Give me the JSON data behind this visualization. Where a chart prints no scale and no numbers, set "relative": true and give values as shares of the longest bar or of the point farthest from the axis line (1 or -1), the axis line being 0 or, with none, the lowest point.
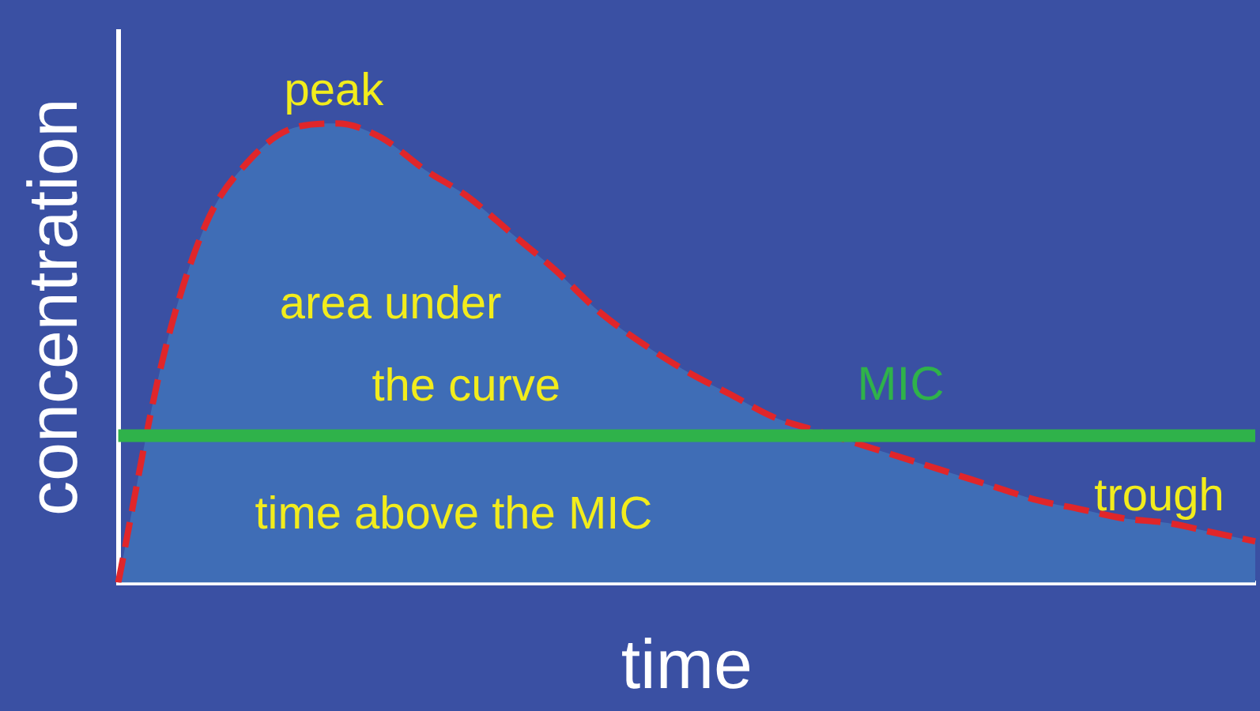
{
  "chart_data": {
    "type": "area",
    "relative": true,
    "xlabel": "time",
    "ylabel": "concentration",
    "grid": false,
    "legend": false,
    "line_style": "dashed",
    "categories": [
      null,
      null,
      null,
      null,
      null,
      null,
      null,
      null,
      null,
      null,
      null,
      null,
      null,
      null,
      null,
      null,
      null,
      null,
      null,
      null,
      null,
      null,
      null,
      null,
      null,
      null,
      null
    ],
    "series": [
      {
        "color": "#3f6db6",
        "values": [
          0,
          0.48,
          0.78,
          0.92,
          0.99,
          1,
          0.97,
          0.9,
          0.84,
          0.76,
          0.68,
          0.59,
          0.52,
          0.46,
          0.41,
          0.36,
          0.33,
          0.3,
          0.27,
          0.24,
          0.21,
          0.18,
          0.16,
          0.14,
          0.13,
          0.11,
          0.09
        ]
      }
    ],
    "ref_lines": [
      {
        "axis": "y",
        "value": 0.32,
        "label": "MIC",
        "color": "#2fb24a"
      }
    ],
    "annotations": [
      "peak",
      "area under the curve",
      "time above the MIC",
      "trough"
    ]
  }
}
